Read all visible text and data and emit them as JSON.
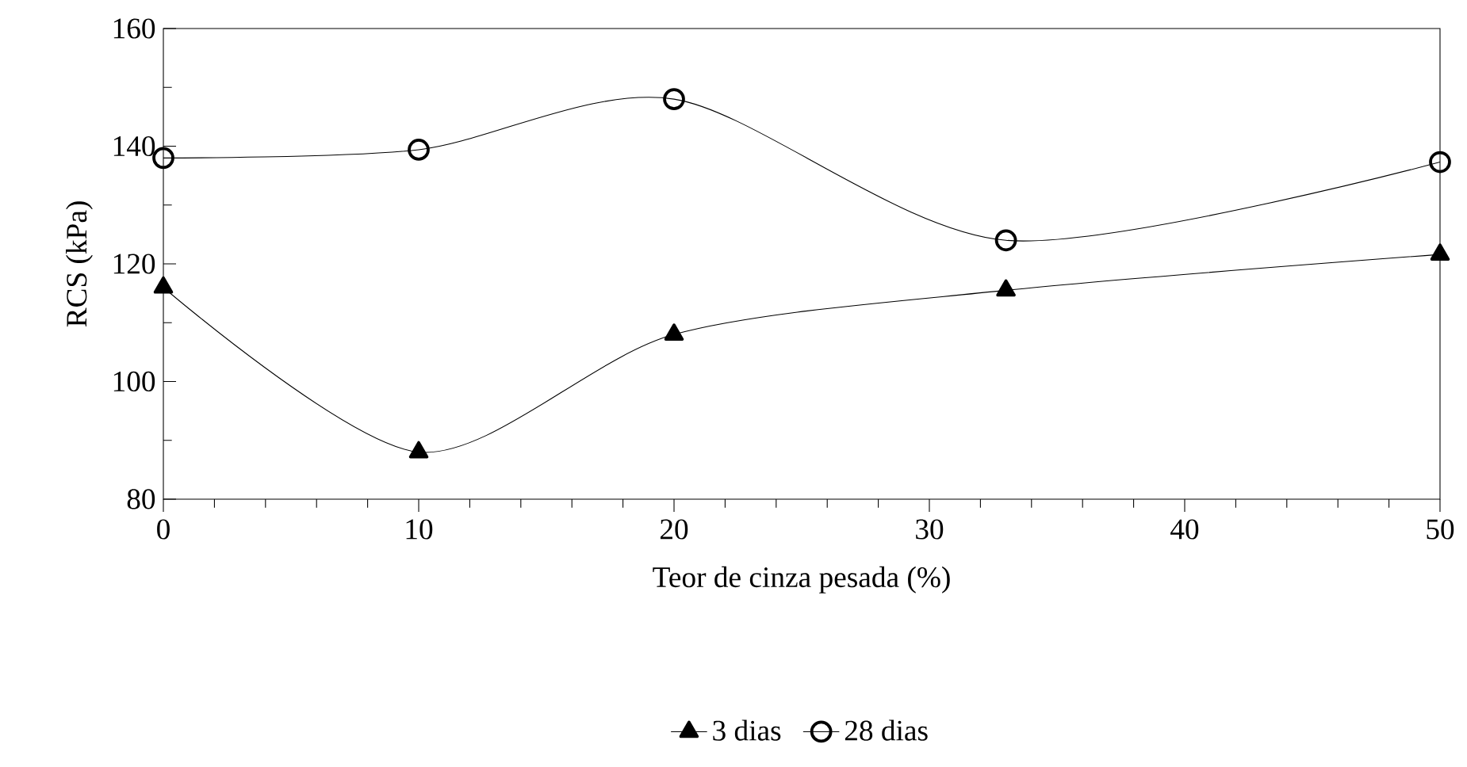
{
  "chart_data": {
    "type": "line",
    "xlabel": "Teor de cinza pesada (%)",
    "ylabel": "RCS (kPa)",
    "x": [
      0,
      10,
      20,
      33,
      50
    ],
    "series": [
      {
        "name": "3 dias",
        "color": "#000000",
        "marker": "triangle",
        "values": [
          116,
          88,
          108,
          115.5,
          121.6
        ]
      },
      {
        "name": "28 dias",
        "color": "#000000",
        "marker": "circle",
        "values": [
          138,
          139.4,
          148,
          124,
          137.3
        ]
      }
    ],
    "xlim": [
      0,
      50
    ],
    "xticks": [
      0,
      10,
      20,
      30,
      40,
      50
    ],
    "ylim": [
      80,
      160
    ],
    "yticks": [
      80,
      100,
      120,
      140,
      160
    ],
    "grid": false,
    "legend": "bottom",
    "line_style": "solid"
  }
}
